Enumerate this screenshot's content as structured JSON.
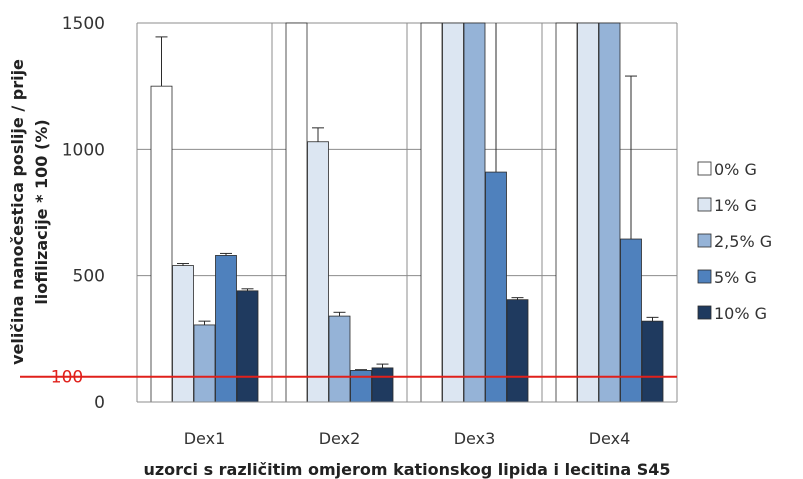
{
  "chart_data": {
    "type": "bar",
    "title": "",
    "xlabel": "uzorci s različitim omjerom kationskog lipida i lecitina S45",
    "ylabel_lines": [
      "veličina nanočestica poslije / prije",
      "liofilizacije * 100 (%)"
    ],
    "ylim": [
      0,
      1500
    ],
    "yticks": [
      0,
      500,
      1000,
      1500
    ],
    "grid": "horizontal",
    "legend_position": "right",
    "categories": [
      "Dex1",
      "Dex2",
      "Dex3",
      "Dex4"
    ],
    "series": [
      {
        "name": "0% G",
        "color": "#ffffff",
        "values": [
          1250,
          1500,
          1500,
          1500
        ],
        "errors": [
          195,
          0,
          0,
          0
        ]
      },
      {
        "name": "1% G",
        "color": "#dce6f2",
        "values": [
          540,
          1030,
          1500,
          1500
        ],
        "errors": [
          8,
          55,
          0,
          0
        ]
      },
      {
        "name": "2,5% G",
        "color": "#95b3d7",
        "values": [
          305,
          340,
          1500,
          1500
        ],
        "errors": [
          15,
          15,
          0,
          0
        ]
      },
      {
        "name": "5% G",
        "color": "#4f81bd",
        "values": [
          580,
          125,
          910,
          645
        ],
        "errors": [
          8,
          3,
          600,
          645
        ]
      },
      {
        "name": "10% G",
        "color": "#1f3a5f",
        "values": [
          440,
          135,
          405,
          320
        ],
        "errors": [
          8,
          15,
          8,
          15
        ]
      }
    ],
    "reference_line": {
      "value": 100,
      "label": "100",
      "color": "#e0201b"
    }
  }
}
